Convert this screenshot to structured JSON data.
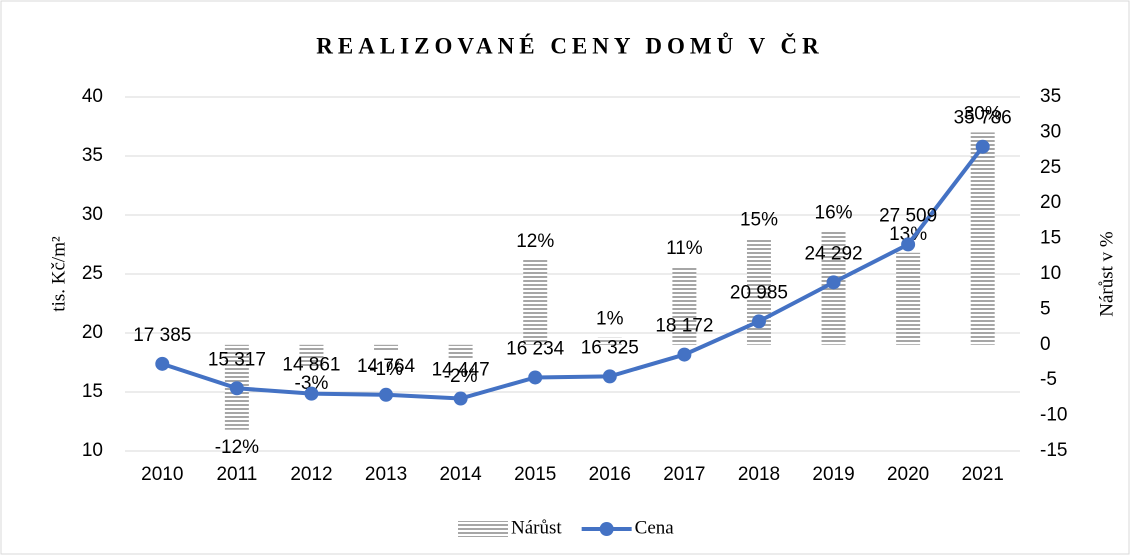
{
  "chart_data": {
    "type": "bar-line",
    "title": "REALIZOVANÉ CENY DOMŮ V ČR",
    "y_label": "tis. Kč/m²",
    "y2_label": "Nárůst v %",
    "categories": [
      "2010",
      "2011",
      "2012",
      "2013",
      "2014",
      "2015",
      "2016",
      "2017",
      "2018",
      "2019",
      "2020",
      "2021"
    ],
    "series": [
      {
        "name": "Nárůst",
        "type": "bar",
        "axis": "y2",
        "color": "#a6a6a6",
        "values": [
          null,
          -12,
          -3,
          -1,
          -2,
          12,
          1,
          11,
          15,
          16,
          13,
          30
        ],
        "value_labels": [
          null,
          "-12%",
          "-3%",
          "-1%",
          "-2%",
          "12%",
          "1%",
          "11%",
          "15%",
          "16%",
          "13%",
          "30%"
        ]
      },
      {
        "name": "Cena",
        "type": "line",
        "axis": "y",
        "color": "#4472c4",
        "values": [
          17.385,
          15.317,
          14.861,
          14.764,
          14.447,
          16.234,
          16.325,
          18.172,
          20.985,
          24.292,
          27.509,
          35.786
        ],
        "value_labels": [
          "17 385",
          "15 317",
          "14 861",
          "14 764",
          "14 447",
          "16 234",
          "16 325",
          "18 172",
          "20 985",
          "24 292",
          "27 509",
          "35 786"
        ]
      }
    ],
    "ylim": [
      10,
      40
    ],
    "yticks": [
      10,
      15,
      20,
      25,
      30,
      35,
      40
    ],
    "y2lim": [
      -15,
      35
    ],
    "y2ticks": [
      -15,
      -10,
      -5,
      0,
      5,
      10,
      15,
      20,
      25,
      30,
      35
    ],
    "grid": true,
    "legend": "bottom"
  }
}
